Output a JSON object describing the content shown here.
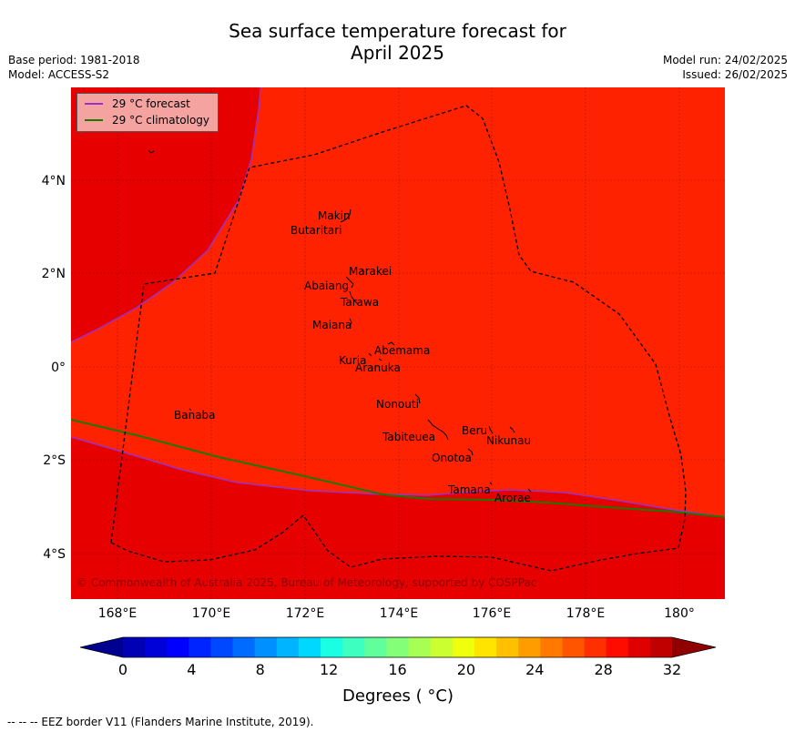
{
  "title": {
    "line1": "Sea surface temperature forecast for",
    "line2": "April 2025"
  },
  "meta": {
    "base_period": "Base period: 1981-2018",
    "model": "Model: ACCESS-S2",
    "model_run": "Model run: 24/02/2025",
    "issued": "Issued: 26/02/2025"
  },
  "legend": [
    {
      "label": "29 °C  forecast",
      "color": "#9b30c8"
    },
    {
      "label": "29 °C  climatology",
      "color": "#1a7a00"
    }
  ],
  "axes": {
    "lon_ticks": [
      "168°E",
      "170°E",
      "172°E",
      "174°E",
      "176°E",
      "178°E",
      "180°"
    ],
    "lat_ticks": [
      "4°N",
      "2°N",
      "0°",
      "2°S",
      "4°S"
    ]
  },
  "islands": [
    "Makin",
    "Butaritari",
    "Marakei",
    "Abaiang",
    "Tarawa",
    "Maiana",
    "Abemama",
    "Kuria",
    "Aranuka",
    "Nonouti",
    "Banaba",
    "Beru",
    "Tabiteuea",
    "Nikunau",
    "Onotoa",
    "Tamana",
    "Arorae"
  ],
  "copyright": "© Commonwealth of Australia 2025, Bureau of Meteorology, supported by COSPPac",
  "colorbar": {
    "ticks": [
      "0",
      "4",
      "8",
      "12",
      "16",
      "20",
      "24",
      "28",
      "32"
    ],
    "label": "Degrees ( °C)",
    "colors": [
      "#000090",
      "#0000b4",
      "#0000d8",
      "#0000ff",
      "#0024ff",
      "#0048ff",
      "#006cff",
      "#0090ff",
      "#00b4ff",
      "#00d8ff",
      "#18ffe4",
      "#3cffc0",
      "#60ff9c",
      "#84ff78",
      "#a8ff54",
      "#ccff30",
      "#f0ff0c",
      "#ffe400",
      "#ffc000",
      "#ff9c00",
      "#ff7800",
      "#ff5400",
      "#ff3000",
      "#ff0c00",
      "#e00000",
      "#c00000",
      "#900000"
    ]
  },
  "colors": {
    "field_main": "#ff2200",
    "field_warm": "#e60000",
    "forecast_line": "#9b30c8",
    "climatology_line": "#1a7a00"
  },
  "footer": "--  --  -- EEZ border V11 (Flanders Marine Institute, 2019)."
}
